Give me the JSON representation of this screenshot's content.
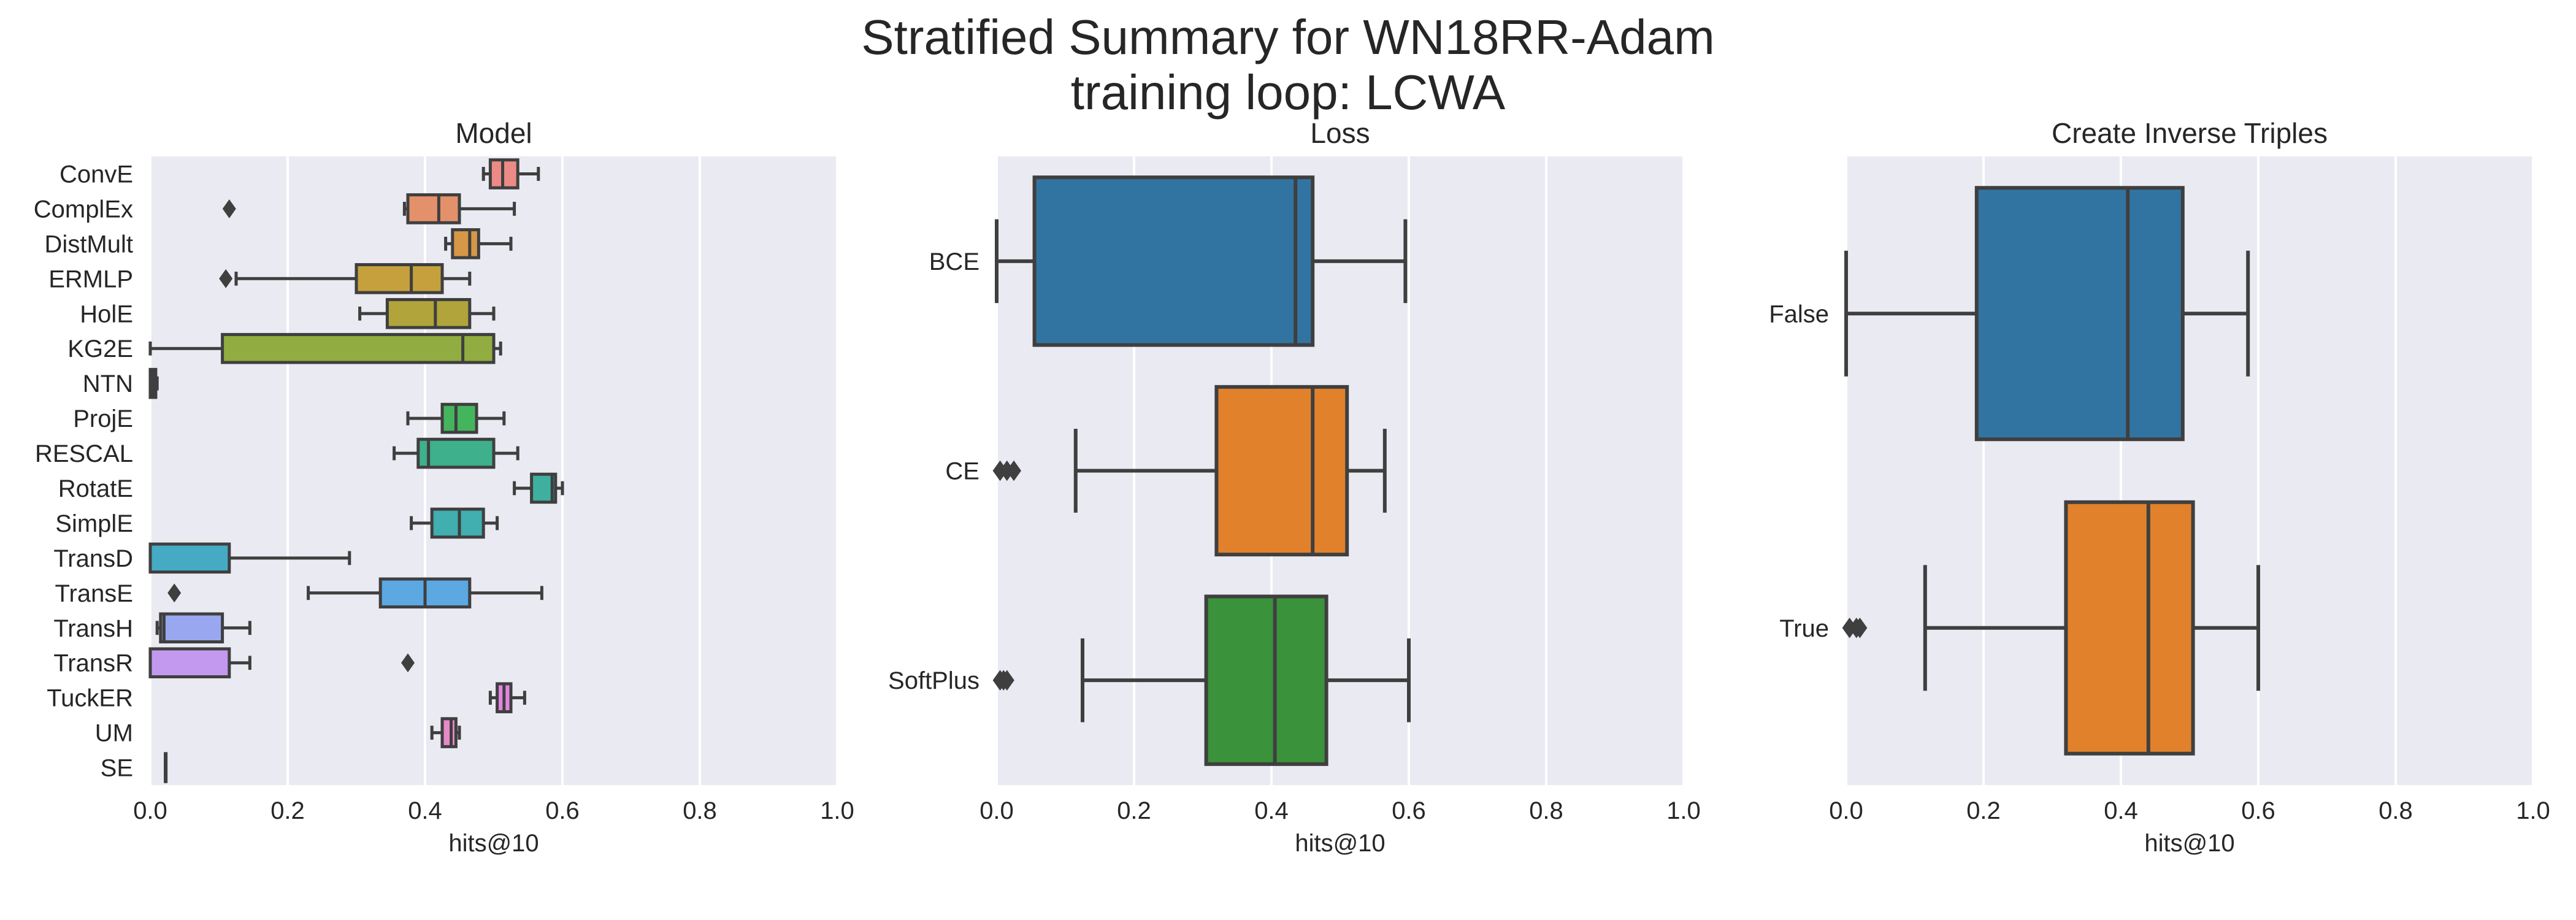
{
  "figure": {
    "title_line1": "Stratified Summary for WN18RR-Adam",
    "title_line2": "training loop: LCWA"
  },
  "chart_data": [
    {
      "type": "box",
      "orientation": "horizontal",
      "title": "Model",
      "xlabel": "hits@10",
      "xlim": [
        0,
        1
      ],
      "xticks": [
        "0.0",
        "0.2",
        "0.4",
        "0.6",
        "0.8",
        "1.0"
      ],
      "grid": true,
      "categories": [
        {
          "label": "ConvE",
          "color": "#ec8b86",
          "whislo": 0.485,
          "q1": 0.495,
          "median": 0.513,
          "q3": 0.535,
          "whishi": 0.565,
          "fliers": []
        },
        {
          "label": "ComplEx",
          "color": "#e3916a",
          "whislo": 0.37,
          "q1": 0.375,
          "median": 0.42,
          "q3": 0.45,
          "whishi": 0.53,
          "fliers": [
            0.115
          ]
        },
        {
          "label": "DistMult",
          "color": "#d69747",
          "whislo": 0.43,
          "q1": 0.44,
          "median": 0.465,
          "q3": 0.478,
          "whishi": 0.525,
          "fliers": []
        },
        {
          "label": "ERMLP",
          "color": "#c5a03c",
          "whislo": 0.125,
          "q1": 0.3,
          "median": 0.38,
          "q3": 0.425,
          "whishi": 0.465,
          "fliers": [
            0.11
          ]
        },
        {
          "label": "HolE",
          "color": "#b1a43a",
          "whislo": 0.305,
          "q1": 0.345,
          "median": 0.415,
          "q3": 0.465,
          "whishi": 0.5,
          "fliers": []
        },
        {
          "label": "KG2E",
          "color": "#91ac40",
          "whislo": 0.0,
          "q1": 0.105,
          "median": 0.455,
          "q3": 0.5,
          "whishi": 0.51,
          "fliers": []
        },
        {
          "label": "NTN",
          "color": "#6bb347",
          "whislo": 0.0,
          "q1": 0.0,
          "median": 0.004,
          "q3": 0.008,
          "whishi": 0.01,
          "fliers": []
        },
        {
          "label": "ProjE",
          "color": "#45b55d",
          "whislo": 0.375,
          "q1": 0.425,
          "median": 0.445,
          "q3": 0.475,
          "whishi": 0.515,
          "fliers": []
        },
        {
          "label": "RESCAL",
          "color": "#3eb08b",
          "whislo": 0.355,
          "q1": 0.39,
          "median": 0.405,
          "q3": 0.5,
          "whishi": 0.535,
          "fliers": []
        },
        {
          "label": "RotatE",
          "color": "#3fafa0",
          "whislo": 0.53,
          "q1": 0.555,
          "median": 0.585,
          "q3": 0.59,
          "whishi": 0.6,
          "fliers": []
        },
        {
          "label": "SimplE",
          "color": "#41aeaf",
          "whislo": 0.38,
          "q1": 0.41,
          "median": 0.45,
          "q3": 0.485,
          "whishi": 0.505,
          "fliers": []
        },
        {
          "label": "TransD",
          "color": "#45abc4",
          "whislo": 0.0,
          "q1": 0.0,
          "median": 0.0,
          "q3": 0.115,
          "whishi": 0.29,
          "fliers": []
        },
        {
          "label": "TransE",
          "color": "#5ba8e3",
          "whislo": 0.23,
          "q1": 0.335,
          "median": 0.4,
          "q3": 0.465,
          "whishi": 0.57,
          "fliers": [
            0.035
          ]
        },
        {
          "label": "TransH",
          "color": "#99a7f0",
          "whislo": 0.01,
          "q1": 0.015,
          "median": 0.02,
          "q3": 0.105,
          "whishi": 0.145,
          "fliers": []
        },
        {
          "label": "TransR",
          "color": "#c399f0",
          "whislo": 0.0,
          "q1": 0.0,
          "median": 0.0,
          "q3": 0.115,
          "whishi": 0.145,
          "fliers": [
            0.375
          ]
        },
        {
          "label": "TuckER",
          "color": "#e285e2",
          "whislo": 0.495,
          "q1": 0.505,
          "median": 0.515,
          "q3": 0.525,
          "whishi": 0.545,
          "fliers": []
        },
        {
          "label": "UM",
          "color": "#e889c8",
          "whislo": 0.41,
          "q1": 0.425,
          "median": 0.438,
          "q3": 0.445,
          "whishi": 0.45,
          "fliers": []
        },
        {
          "label": "SE",
          "color": "#ea8fb0",
          "whislo": 0.022,
          "q1": 0.022,
          "median": 0.022,
          "q3": 0.022,
          "whishi": 0.022,
          "fliers": []
        }
      ]
    },
    {
      "type": "box",
      "orientation": "horizontal",
      "title": "Loss",
      "xlabel": "hits@10",
      "xlim": [
        0,
        1
      ],
      "xticks": [
        "0.0",
        "0.2",
        "0.4",
        "0.6",
        "0.8",
        "1.0"
      ],
      "grid": true,
      "categories": [
        {
          "label": "BCE",
          "color": "#3274a1",
          "whislo": 0.0,
          "q1": 0.055,
          "median": 0.435,
          "q3": 0.46,
          "whishi": 0.595,
          "fliers": []
        },
        {
          "label": "CE",
          "color": "#e1812c",
          "whislo": 0.115,
          "q1": 0.32,
          "median": 0.46,
          "q3": 0.51,
          "whishi": 0.565,
          "fliers": [
            0.005,
            0.015,
            0.025
          ]
        },
        {
          "label": "SoftPlus",
          "color": "#3a923a",
          "whislo": 0.125,
          "q1": 0.305,
          "median": 0.405,
          "q3": 0.48,
          "whishi": 0.6,
          "fliers": [
            0.005,
            0.01,
            0.015
          ]
        }
      ]
    },
    {
      "type": "box",
      "orientation": "horizontal",
      "title": "Create Inverse Triples",
      "xlabel": "hits@10",
      "xlim": [
        0,
        1
      ],
      "xticks": [
        "0.0",
        "0.2",
        "0.4",
        "0.6",
        "0.8",
        "1.0"
      ],
      "grid": true,
      "categories": [
        {
          "label": "False",
          "color": "#3274a1",
          "whislo": 0.0,
          "q1": 0.19,
          "median": 0.41,
          "q3": 0.49,
          "whishi": 0.585,
          "fliers": []
        },
        {
          "label": "True",
          "color": "#e1812c",
          "whislo": 0.115,
          "q1": 0.32,
          "median": 0.44,
          "q3": 0.505,
          "whishi": 0.6,
          "fliers": [
            0.005,
            0.015,
            0.02
          ]
        }
      ]
    }
  ]
}
